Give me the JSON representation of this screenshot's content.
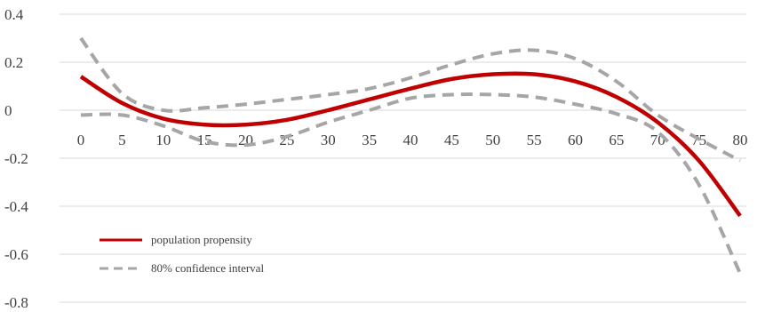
{
  "chart_data": {
    "type": "line",
    "title": "",
    "xlabel": "",
    "ylabel": "",
    "x": [
      0,
      5,
      10,
      15,
      20,
      25,
      30,
      35,
      40,
      45,
      50,
      55,
      60,
      65,
      70,
      75,
      80
    ],
    "x_tick_labels": [
      "0",
      "5",
      "10",
      "15",
      "20",
      "25",
      "30",
      "35",
      "40",
      "45",
      "50",
      "55",
      "60",
      "65",
      "70",
      "75",
      "80"
    ],
    "y_ticks": [
      0.4,
      0.2,
      0,
      -0.2,
      -0.4,
      -0.6,
      -0.8
    ],
    "y_tick_labels": [
      "0.4",
      "0.2",
      "0",
      "-0.2",
      "-0.4",
      "-0.6",
      "-0.8"
    ],
    "ylim": [
      -0.8,
      0.4
    ],
    "grid": "horizontal",
    "legend_position": "bottom-left",
    "series": [
      {
        "name": "population propensity",
        "color": "#c00000",
        "style": "solid",
        "values": [
          0.14,
          0.03,
          -0.035,
          -0.06,
          -0.06,
          -0.04,
          0.0,
          0.045,
          0.09,
          0.13,
          0.15,
          0.15,
          0.12,
          0.055,
          -0.05,
          -0.21,
          -0.44
        ]
      },
      {
        "name": "80% confidence interval",
        "color": "#a6a6a6",
        "style": "dashed",
        "values": [
          0.3,
          0.07,
          0.0,
          0.01,
          0.025,
          0.045,
          0.065,
          0.09,
          0.135,
          0.19,
          0.235,
          0.25,
          0.215,
          0.12,
          -0.02,
          -0.12,
          -0.21
        ]
      },
      {
        "name": "",
        "legend": false,
        "color": "#a6a6a6",
        "style": "dashed",
        "values": [
          -0.02,
          -0.02,
          -0.065,
          -0.13,
          -0.145,
          -0.11,
          -0.05,
          0.0,
          0.05,
          0.065,
          0.065,
          0.055,
          0.025,
          -0.015,
          -0.09,
          -0.31,
          -0.68
        ]
      }
    ]
  }
}
